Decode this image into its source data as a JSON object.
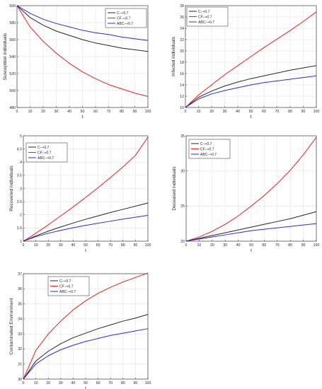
{
  "chart_data": [
    {
      "type": "line",
      "xlabel": "t",
      "ylabel": "Susceptibel individuals",
      "xlim": [
        0,
        100
      ],
      "ylim": [
        480,
        600
      ],
      "xticks": [
        0,
        10,
        20,
        30,
        40,
        50,
        60,
        70,
        80,
        90,
        100
      ],
      "yticks": [
        480,
        500,
        520,
        540,
        560,
        580,
        600
      ],
      "grid": true,
      "legend": "top-right",
      "x": [
        0,
        10,
        20,
        30,
        40,
        50,
        60,
        70,
        80,
        90,
        100
      ],
      "series": [
        {
          "name": "C-⇒0.7",
          "color": "#262626",
          "values": [
            600,
            586,
            577,
            570,
            565,
            560,
            556,
            553,
            550,
            548,
            546
          ]
        },
        {
          "name": "CF-⇒0.7",
          "color": "#e8201e",
          "values": [
            600,
            575,
            558,
            544,
            532,
            522,
            514,
            507,
            502,
            497,
            493
          ]
        },
        {
          "name": "ABC-⇒0.7",
          "color": "#2b2bd9",
          "values": [
            600,
            591,
            584,
            579,
            575,
            571,
            568,
            566,
            563,
            561,
            559
          ]
        }
      ]
    },
    {
      "type": "line",
      "xlabel": "t",
      "ylabel": "Infected individuals",
      "xlim": [
        0,
        100
      ],
      "ylim": [
        10,
        28
      ],
      "xticks": [
        0,
        10,
        20,
        30,
        40,
        50,
        60,
        70,
        80,
        90,
        100
      ],
      "yticks": [
        10,
        12,
        14,
        16,
        18,
        20,
        22,
        24,
        26,
        28
      ],
      "grid": true,
      "legend": "top-left",
      "x": [
        0,
        10,
        20,
        30,
        40,
        50,
        60,
        70,
        80,
        90,
        100
      ],
      "series": [
        {
          "name": "C-⇒0.7",
          "color": "#262626",
          "values": [
            10,
            11.8,
            12.9,
            13.8,
            14.5,
            15.1,
            15.6,
            16.1,
            16.6,
            17.0,
            17.4
          ]
        },
        {
          "name": "CF-⇒0.7",
          "color": "#e8201e",
          "values": [
            10,
            12.2,
            14.0,
            15.8,
            17.4,
            19.0,
            20.6,
            22.1,
            23.6,
            25.2,
            26.9
          ]
        },
        {
          "name": "ABC-⇒0.7",
          "color": "#2b2bd9",
          "values": [
            10,
            11.5,
            12.4,
            13.0,
            13.5,
            14.0,
            14.4,
            14.7,
            15.0,
            15.3,
            15.6
          ]
        }
      ]
    },
    {
      "type": "line",
      "xlabel": "t",
      "ylabel": "Recovered individuals",
      "xlim": [
        0,
        100
      ],
      "ylim": [
        1,
        5
      ],
      "xticks": [
        0,
        10,
        20,
        30,
        40,
        50,
        60,
        70,
        80,
        90,
        100
      ],
      "yticks": [
        1,
        1.5,
        2,
        2.5,
        3,
        3.5,
        4,
        4.5,
        5
      ],
      "grid": true,
      "legend": "top-left",
      "x": [
        0,
        10,
        20,
        30,
        40,
        50,
        60,
        70,
        80,
        90,
        100
      ],
      "series": [
        {
          "name": "C-⇒0.7",
          "color": "#262626",
          "values": [
            1,
            1.2,
            1.38,
            1.54,
            1.69,
            1.83,
            1.96,
            2.09,
            2.21,
            2.33,
            2.45
          ]
        },
        {
          "name": "CF-⇒0.7",
          "color": "#e8201e",
          "values": [
            1,
            1.3,
            1.62,
            1.96,
            2.3,
            2.66,
            3.03,
            3.42,
            3.82,
            4.26,
            4.95
          ]
        },
        {
          "name": "ABC-⇒0.7",
          "color": "#2b2bd9",
          "values": [
            1,
            1.17,
            1.3,
            1.41,
            1.51,
            1.6,
            1.68,
            1.76,
            1.84,
            1.91,
            1.98
          ]
        }
      ]
    },
    {
      "type": "line",
      "xlabel": "t",
      "ylabel": "Deceased individuals",
      "xlim": [
        0,
        100
      ],
      "ylim": [
        20,
        35
      ],
      "xticks": [
        0,
        10,
        20,
        30,
        40,
        50,
        60,
        70,
        80,
        90,
        100
      ],
      "yticks": [
        20,
        25,
        30,
        35
      ],
      "grid": true,
      "legend": "top-left",
      "x": [
        0,
        10,
        20,
        30,
        40,
        50,
        60,
        70,
        80,
        90,
        100
      ],
      "series": [
        {
          "name": "C-⇒0.7",
          "color": "#262626",
          "values": [
            20,
            20.4,
            20.8,
            21.2,
            21.6,
            22.0,
            22.4,
            22.8,
            23.2,
            23.7,
            24.2
          ]
        },
        {
          "name": "CF-⇒0.7",
          "color": "#e8201e",
          "values": [
            20,
            20.6,
            21.4,
            22.4,
            23.6,
            25.0,
            26.5,
            28.2,
            30.1,
            32.3,
            34.8
          ]
        },
        {
          "name": "ABC-⇒0.7",
          "color": "#2b2bd9",
          "values": [
            20,
            20.3,
            20.6,
            20.9,
            21.2,
            21.5,
            21.7,
            21.9,
            22.1,
            22.3,
            22.5
          ]
        }
      ]
    },
    {
      "type": "line",
      "xlabel": "t",
      "ylabel": "Contaminated Environment",
      "xlim": [
        0,
        100
      ],
      "ylim": [
        30,
        37
      ],
      "xticks": [
        0,
        10,
        20,
        30,
        40,
        50,
        60,
        70,
        80,
        90,
        100
      ],
      "yticks": [
        30,
        31,
        32,
        33,
        34,
        35,
        36,
        37
      ],
      "grid": true,
      "legend": "top-left",
      "x": [
        0,
        10,
        20,
        30,
        40,
        50,
        60,
        70,
        80,
        90,
        100
      ],
      "series": [
        {
          "name": "C-⇒0.7",
          "color": "#262626",
          "values": [
            30,
            31.2,
            31.85,
            32.35,
            32.75,
            33.05,
            33.35,
            33.6,
            33.85,
            34.05,
            34.3
          ]
        },
        {
          "name": "CF-⇒0.7",
          "color": "#e8201e",
          "values": [
            30,
            31.9,
            33.0,
            33.85,
            34.6,
            35.2,
            35.7,
            36.1,
            36.45,
            36.75,
            37.05
          ]
        },
        {
          "name": "ABC-⇒0.7",
          "color": "#2b2bd9",
          "values": [
            30,
            31.0,
            31.55,
            31.95,
            32.25,
            32.5,
            32.7,
            32.9,
            33.05,
            33.2,
            33.35
          ]
        }
      ]
    }
  ]
}
